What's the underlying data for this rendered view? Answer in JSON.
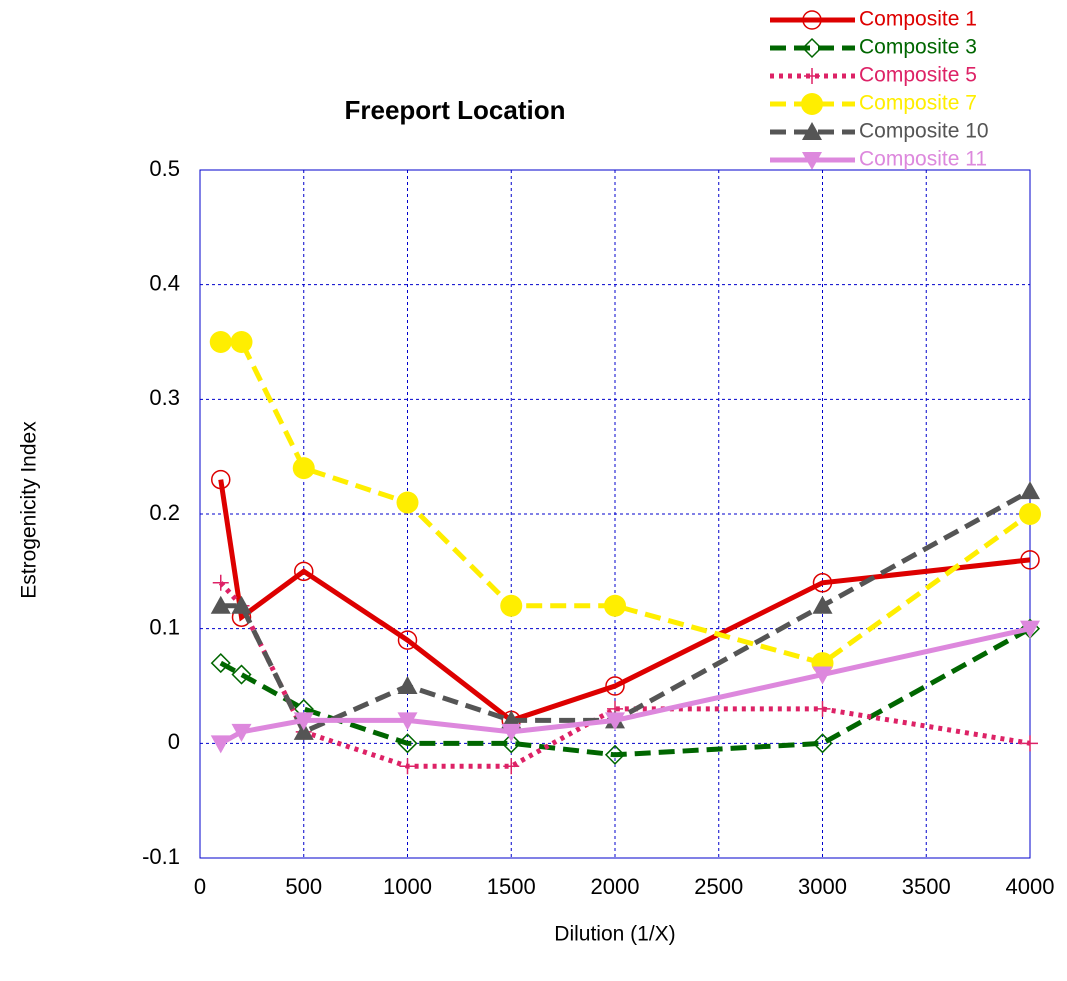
{
  "chart_data": {
    "type": "line",
    "title": "Freeport Location",
    "xlabel": "Dilution (1/X)",
    "ylabel": "Estrogenicity Index",
    "x": [
      100,
      200,
      500,
      1000,
      1500,
      2000,
      3000,
      4000
    ],
    "xlim": [
      0,
      4000
    ],
    "xticks": [
      0,
      500,
      1000,
      1500,
      2000,
      2500,
      3000,
      3500,
      4000
    ],
    "ylim": [
      -0.1,
      0.5
    ],
    "yticks": [
      -0.1,
      0,
      0.1,
      0.2,
      0.3,
      0.4,
      0.5
    ],
    "grid": true,
    "legend": "top-right",
    "series": [
      {
        "name": "Composite 1",
        "color": "#dd0000",
        "linestyle": "solid",
        "marker": "open-circle",
        "values": [
          0.23,
          0.11,
          0.15,
          0.09,
          0.02,
          0.05,
          0.14,
          0.16
        ]
      },
      {
        "name": "Composite 3",
        "color": "#006600",
        "linestyle": "dashed",
        "marker": "open-diamond",
        "values": [
          0.07,
          0.06,
          0.03,
          0,
          0,
          -0.01,
          0,
          0.1
        ]
      },
      {
        "name": "Composite 5",
        "color": "#dd2266",
        "linestyle": "dotted",
        "marker": "plus",
        "values": [
          0.14,
          0.12,
          0.01,
          -0.02,
          -0.02,
          0.03,
          0.03,
          0
        ]
      },
      {
        "name": "Composite 7",
        "color": "#ffee00",
        "linestyle": "dashed",
        "marker": "filled-circle",
        "values": [
          0.35,
          0.35,
          0.24,
          0.21,
          0.12,
          0.12,
          0.07,
          0.2
        ]
      },
      {
        "name": "Composite 10",
        "color": "#555555",
        "linestyle": "dashed",
        "marker": "triangle-up",
        "values": [
          0.12,
          0.12,
          0.01,
          0.05,
          0.02,
          0.02,
          0.12,
          0.22
        ]
      },
      {
        "name": "Composite 11",
        "color": "#dd88dd",
        "linestyle": "solid",
        "marker": "triangle-down",
        "values": [
          0,
          0.01,
          0.02,
          0.02,
          0.01,
          0.02,
          0.06,
          0.1
        ]
      }
    ]
  }
}
